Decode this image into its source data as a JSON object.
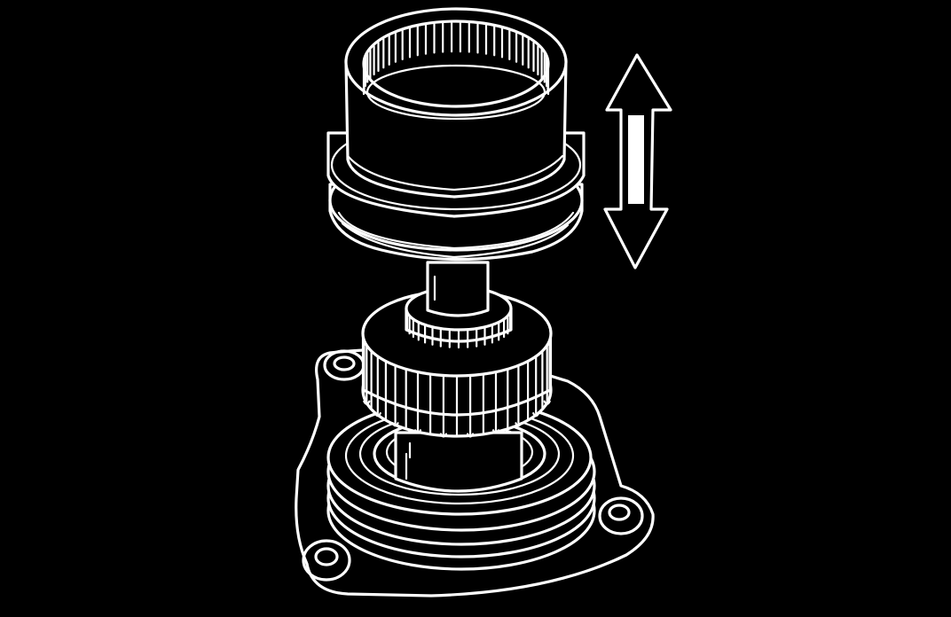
{
  "figure": {
    "background_color": "#000000",
    "line_color": "#ffffff",
    "components": [
      {
        "name": "internally-splined-sleeve",
        "icon": "splined-sleeve-icon"
      },
      {
        "name": "splined-gear",
        "icon": "spur-gear-icon"
      },
      {
        "name": "flanged-bearing-housing",
        "icon": "bearing-housing-icon"
      },
      {
        "name": "movement-direction-arrow",
        "icon": "double-vertical-arrow-icon"
      }
    ]
  }
}
